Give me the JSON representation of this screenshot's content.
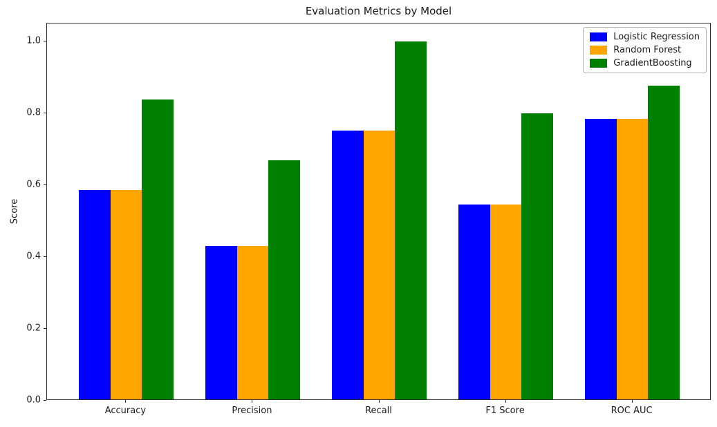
{
  "figure": {
    "background": "#ffffff"
  },
  "chart_data": {
    "type": "bar",
    "title": "Evaluation Metrics by Model",
    "xlabel": "",
    "ylabel": "Score",
    "categories": [
      "Accuracy",
      "Precision",
      "Recall",
      "F1 Score",
      "ROC AUC"
    ],
    "series": [
      {
        "name": "Logistic Regression",
        "color": "#0000FF",
        "values": [
          0.585,
          0.429,
          0.75,
          0.545,
          0.783
        ]
      },
      {
        "name": "Random Forest",
        "color": "#FFA500",
        "values": [
          0.585,
          0.429,
          0.75,
          0.545,
          0.783
        ]
      },
      {
        "name": "GradientBoosting",
        "color": "#008000",
        "values": [
          0.837,
          0.667,
          1.0,
          0.8,
          0.876
        ]
      }
    ],
    "ylim": [
      0,
      1.05
    ],
    "yticks": [
      0.0,
      0.2,
      0.4,
      0.6,
      0.8,
      1.0
    ],
    "ytick_labels": [
      "0.0",
      "0.2",
      "0.4",
      "0.6",
      "0.8",
      "1.0"
    ],
    "grid": false,
    "legend_position": "upper right"
  }
}
